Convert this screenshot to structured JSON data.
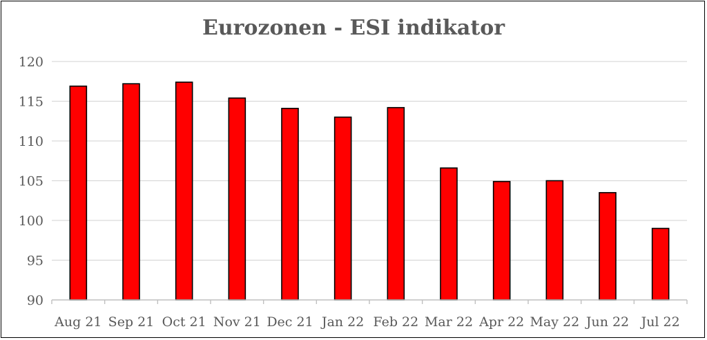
{
  "chart_data": {
    "type": "bar",
    "title": "Eurozonen - ESI indikator",
    "xlabel": "",
    "ylabel": "",
    "categories": [
      "Aug 21",
      "Sep 21",
      "Oct 21",
      "Nov 21",
      "Dec 21",
      "Jan 22",
      "Feb 22",
      "Mar 22",
      "Apr 22",
      "May 22",
      "Jun 22",
      "Jul 22"
    ],
    "values": [
      116.9,
      117.2,
      117.4,
      115.4,
      114.1,
      113.0,
      114.2,
      106.6,
      104.9,
      105.0,
      103.5,
      99.0
    ],
    "ylim": [
      90,
      120
    ],
    "yticks": [
      "90",
      "95",
      "100",
      "105",
      "110",
      "115",
      "120"
    ],
    "grid": true,
    "legend": "none",
    "colors": {
      "bar": "#ff0000",
      "bar_border": "#000000",
      "text": "#595959",
      "grid": "#d9d9d9"
    }
  }
}
